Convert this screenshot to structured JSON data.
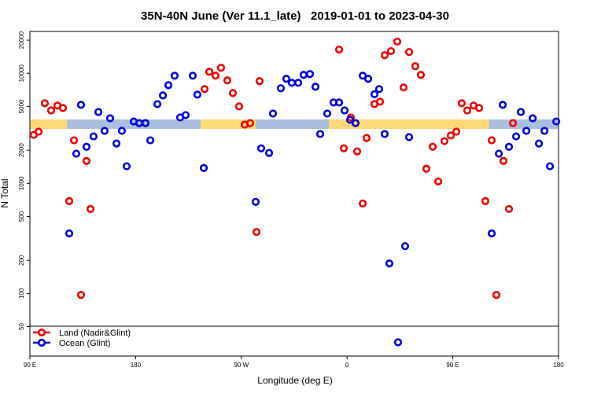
{
  "chart_data": {
    "type": "scatter",
    "title": "35N-40N June (Ver 11.1_late)   2019-01-01 to 2023-04-30",
    "x_label": "Longitude (deg E)",
    "y_label": "N Total",
    "log_y": true,
    "legend": "bottom-left",
    "xlim": [
      90,
      540
    ],
    "ylim": [
      27,
      24000
    ],
    "xticks": [
      {
        "value": 90,
        "label": "90 E"
      },
      180,
      {
        "value": 270,
        "label": "90 W"
      },
      {
        "value": 360,
        "label": "0"
      },
      {
        "value": 450,
        "label": "90 E"
      },
      {
        "value": 540,
        "label": "180"
      }
    ],
    "yticks": [
      50,
      100,
      200,
      500,
      1000,
      2000,
      5000,
      10000,
      20000
    ],
    "series": [
      {
        "name": "Land (Nadir&Glint)",
        "color": "#ee0000",
        "x": [
          93.3,
          97.4,
          102.7,
          108.1,
          113.4,
          118.1,
          123.5,
          127.5,
          133.5,
          138.2,
          141.6,
          238.7,
          242.7,
          248.0,
          252.7,
          258.1,
          262.8,
          268.1,
          272.8,
          277.5,
          282.9,
          285.5,
          353.2,
          357.2,
          363.2,
          368.6,
          373.3,
          376.6,
          383.3,
          388.0,
          392.0,
          397.4,
          402.7,
          408.1,
          412.8,
          418.1,
          422.8,
          427.5,
          432.9,
          437.6,
          442.9,
          448.3,
          453.0,
          457.6,
          462.3,
          467.7,
          472.4,
          477.7,
          483.1,
          487.1,
          493.1,
          497.8,
          501.2
        ],
        "values": [
          2760,
          2950,
          5340,
          4600,
          5090,
          4840,
          690,
          2460,
          97,
          1600,
          585,
          7190,
          10330,
          9510,
          11220,
          8620,
          6620,
          5000,
          3420,
          3530,
          362,
          8480,
          16400,
          2080,
          3970,
          1950,
          656,
          2580,
          5250,
          5520,
          14600,
          15900,
          19400,
          7430,
          15600,
          11600,
          9680,
          1360,
          2150,
          1040,
          2420,
          2720,
          2950,
          5340,
          4600,
          5090,
          4840,
          690,
          2460,
          97,
          1600,
          585,
          3530
        ]
      },
      {
        "name": "Ocean (Glint)",
        "color": "#0000dd",
        "x": [
          123.5,
          129.5,
          133.5,
          138.2,
          144.2,
          148.3,
          153.6,
          158.3,
          163.7,
          168.3,
          172.4,
          178.4,
          183.1,
          188.4,
          192.5,
          198.5,
          203.2,
          207.9,
          213.2,
          217.9,
          222.6,
          228.6,
          232.6,
          238.0,
          282.2,
          286.9,
          293.6,
          296.9,
          303.6,
          308.3,
          313.0,
          318.4,
          323.0,
          328.4,
          333.1,
          337.1,
          343.1,
          348.5,
          353.2,
          357.9,
          362.5,
          367.2,
          373.3,
          378.0,
          383.3,
          387.3,
          392.0,
          396.0,
          403.4,
          409.4,
          412.8,
          483.1,
          489.2,
          492.5,
          497.8,
          503.9,
          507.9,
          512.6,
          518.0,
          523.3,
          528.0,
          532.7,
          538.1
        ],
        "values": [
          351,
          1860,
          5170,
          2150,
          2670,
          4450,
          3000,
          3900,
          2300,
          3000,
          1430,
          3650,
          3530,
          3530,
          2460,
          5250,
          6300,
          7800,
          9510,
          3970,
          4170,
          9510,
          6400,
          1380,
          679,
          2080,
          1890,
          4310,
          7310,
          8910,
          8200,
          8200,
          9680,
          9840,
          7550,
          2810,
          4310,
          5430,
          5430,
          4600,
          3780,
          3530,
          9510,
          8910,
          6450,
          7190,
          2810,
          187,
          36,
          269,
          2630,
          351,
          1860,
          5170,
          2150,
          2670,
          4450,
          3000,
          3900,
          2300,
          3000,
          1430,
          3650
        ]
      }
    ]
  }
}
